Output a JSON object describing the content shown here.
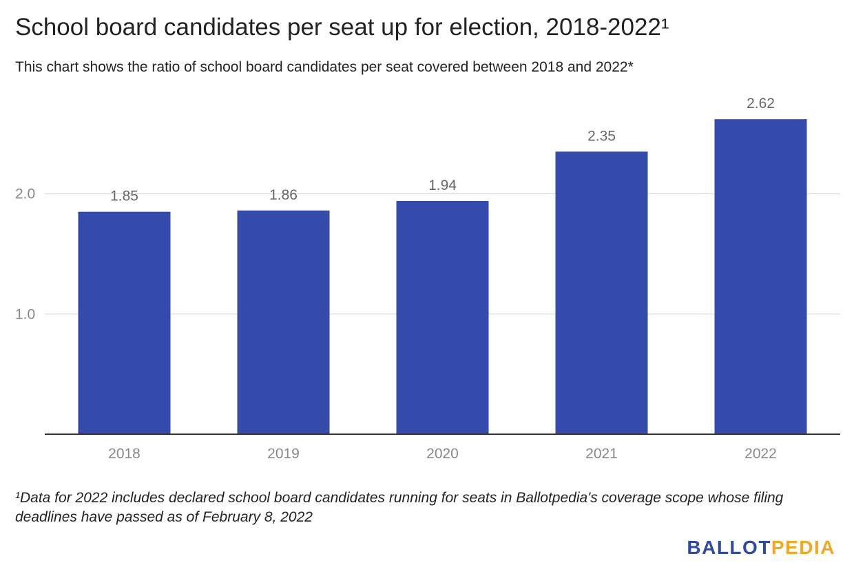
{
  "title": "School board candidates per seat up for election, 2018-2022¹",
  "subtitle": "This chart shows the ratio of school board candidates per seat covered between 2018 and 2022*",
  "footnote": "¹Data for 2022 includes declared school board candidates running for seats in Ballotpedia's coverage scope whose filing deadlines have passed as of February 8, 2022",
  "logo": {
    "part1": "BALLOT",
    "part2": "PEDIA"
  },
  "colors": {
    "bar": "#344bab",
    "grid": "#e2e2e2",
    "axis": "#333333",
    "tick_text": "#888888",
    "label_text": "#666666",
    "logo_blue": "#2f4aa2",
    "logo_orange": "#f2a821"
  },
  "chart_data": {
    "type": "bar",
    "categories": [
      "2018",
      "2019",
      "2020",
      "2021",
      "2022"
    ],
    "values": [
      1.85,
      1.86,
      1.94,
      2.35,
      2.62
    ],
    "data_labels": [
      "1.85",
      "1.86",
      "1.94",
      "2.35",
      "2.62"
    ],
    "yticks": [
      1.0,
      2.0
    ],
    "ytick_labels": [
      "1.0",
      "2.0"
    ],
    "ylim": [
      0,
      2.62
    ],
    "xlabel": "",
    "ylabel": "",
    "grid": true,
    "legend": "none"
  }
}
